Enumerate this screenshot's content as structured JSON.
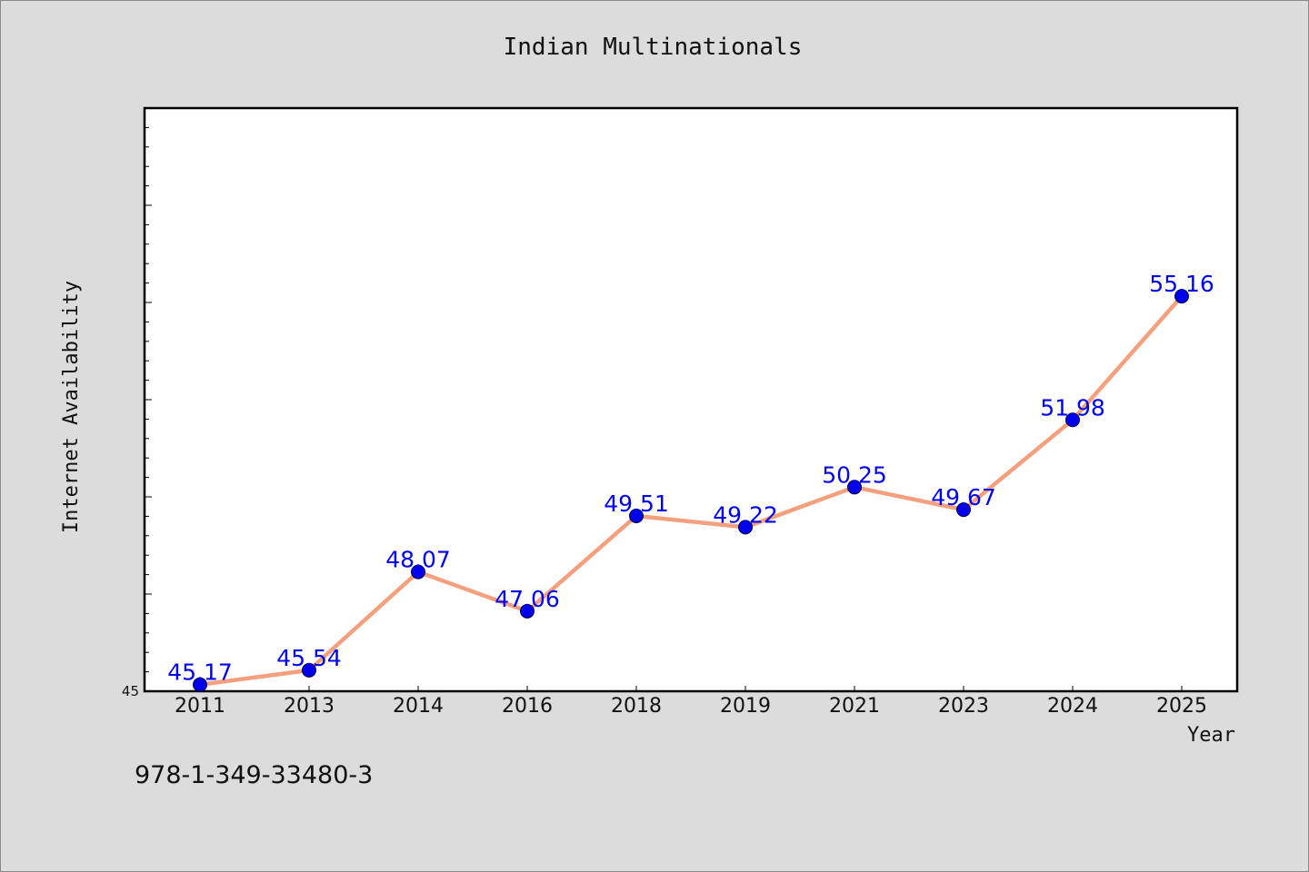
{
  "chart_data": {
    "type": "line",
    "title": "Indian Multinationals",
    "xlabel": "Year",
    "ylabel": "Internet Availability",
    "categories": [
      "2011",
      "2013",
      "2014",
      "2016",
      "2018",
      "2019",
      "2021",
      "2023",
      "2024",
      "2025"
    ],
    "series": [
      {
        "values": [
          45.17,
          45.54,
          48.07,
          47.06,
          49.51,
          49.22,
          50.25,
          49.67,
          51.98,
          55.16
        ],
        "labels": [
          "45.17",
          "45.54",
          "48.07",
          "47.06",
          "49.51",
          "49.22",
          "50.25",
          "49.67",
          "51.98",
          "55.16"
        ]
      }
    ],
    "ylim": [
      45,
      60
    ],
    "yticks_labeled": [
      "45"
    ],
    "grid": false,
    "colors": {
      "line": "#f4a07e",
      "marker": "#0000ee",
      "label": "#0000ee",
      "background": "#dcdcdc",
      "plot_bg": "#ffffff"
    }
  },
  "footer": {
    "text": "978-1-349-33480-3"
  }
}
